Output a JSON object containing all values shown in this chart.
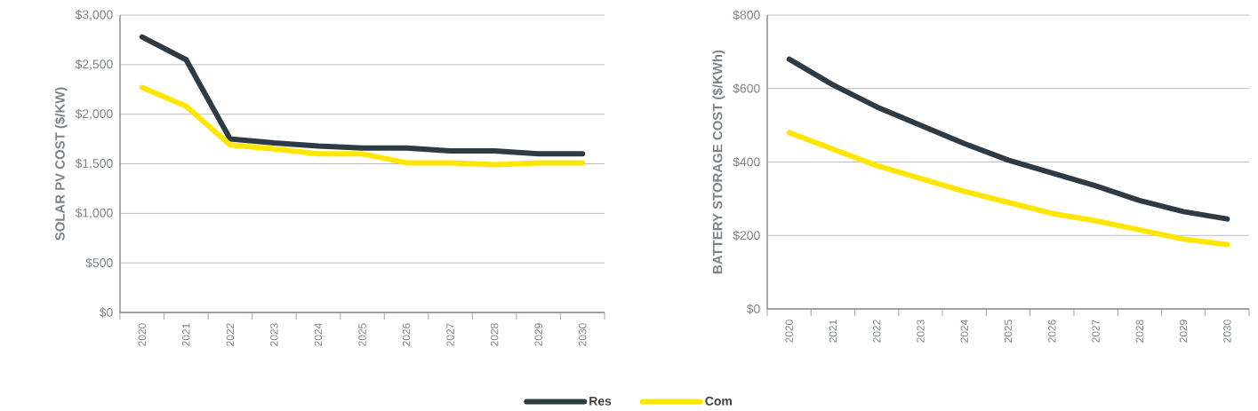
{
  "chart_data": [
    {
      "type": "line",
      "ylabel": "SOLAR PV COST ($/KW)",
      "categories": [
        "2020",
        "2021",
        "2022",
        "2023",
        "2024",
        "2025",
        "2026",
        "2027",
        "2028",
        "2029",
        "2030"
      ],
      "series": [
        {
          "name": "Res",
          "color": "#2e3a44",
          "values": [
            2780,
            2550,
            1750,
            1710,
            1680,
            1660,
            1660,
            1630,
            1630,
            1600,
            1600
          ]
        },
        {
          "name": "Com",
          "color": "#ffe600",
          "values": [
            2270,
            2080,
            1690,
            1650,
            1600,
            1600,
            1510,
            1510,
            1490,
            1510,
            1510
          ]
        }
      ],
      "ylim": [
        0,
        3000
      ],
      "yticks": [
        {
          "value": 0,
          "label": "$0"
        },
        {
          "value": 500,
          "label": "$500"
        },
        {
          "value": 1000,
          "label": "$1,000"
        },
        {
          "value": 1500,
          "label": "$1,500"
        },
        {
          "value": 2000,
          "label": "$2,000"
        },
        {
          "value": 2500,
          "label": "$2,500"
        },
        {
          "value": 3000,
          "label": "$3,000"
        }
      ],
      "grid": "y",
      "legend": "bottom",
      "line_style": "solid",
      "marker": "none"
    },
    {
      "type": "line",
      "ylabel": "BATTERY STORAGE COST ($/KWh)",
      "categories": [
        "2020",
        "2021",
        "2022",
        "2023",
        "2024",
        "2025",
        "2026",
        "2027",
        "2028",
        "2029",
        "2030"
      ],
      "series": [
        {
          "color": "#2e3a44",
          "values": [
            680,
            610,
            550,
            500,
            450,
            405,
            370,
            335,
            295,
            265,
            245
          ]
        },
        {
          "color": "#ffe600",
          "values": [
            480,
            435,
            390,
            355,
            320,
            290,
            260,
            240,
            215,
            190,
            175
          ]
        }
      ],
      "ylim": [
        0,
        800
      ],
      "yticks": [
        {
          "value": 0,
          "label": "$0"
        },
        {
          "value": 200,
          "label": "$200"
        },
        {
          "value": 400,
          "label": "$400"
        },
        {
          "value": 600,
          "label": "$600"
        },
        {
          "value": 800,
          "label": "$800"
        }
      ],
      "grid": "y",
      "line_style": "solid",
      "marker": "none"
    }
  ]
}
